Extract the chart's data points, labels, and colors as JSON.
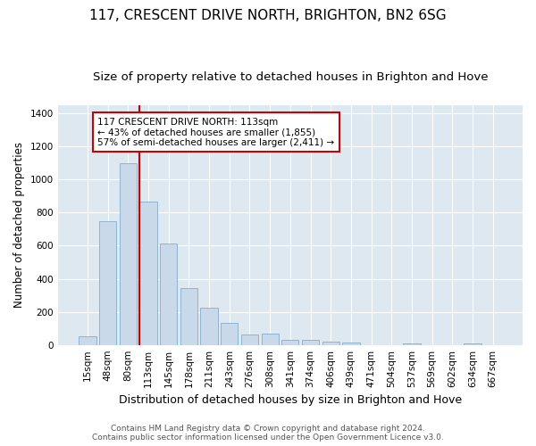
{
  "title": "117, CRESCENT DRIVE NORTH, BRIGHTON, BN2 6SG",
  "subtitle": "Size of property relative to detached houses in Brighton and Hove",
  "xlabel": "Distribution of detached houses by size in Brighton and Hove",
  "ylabel": "Number of detached properties",
  "footer_line1": "Contains HM Land Registry data © Crown copyright and database right 2024.",
  "footer_line2": "Contains public sector information licensed under the Open Government Licence v3.0.",
  "bar_labels": [
    "15sqm",
    "48sqm",
    "80sqm",
    "113sqm",
    "145sqm",
    "178sqm",
    "211sqm",
    "243sqm",
    "276sqm",
    "308sqm",
    "341sqm",
    "374sqm",
    "406sqm",
    "439sqm",
    "471sqm",
    "504sqm",
    "537sqm",
    "569sqm",
    "602sqm",
    "634sqm",
    "667sqm"
  ],
  "bar_values": [
    50,
    750,
    1100,
    865,
    615,
    345,
    225,
    135,
    65,
    70,
    30,
    30,
    20,
    15,
    0,
    0,
    10,
    0,
    0,
    10,
    0
  ],
  "bar_color": "#c9d9ea",
  "bar_edge_color": "#8db4d0",
  "vline_index": 3,
  "vline_color": "#cc0000",
  "annotation_text": "117 CRESCENT DRIVE NORTH: 113sqm\n← 43% of detached houses are smaller (1,855)\n57% of semi-detached houses are larger (2,411) →",
  "annotation_box_facecolor": "#ffffff",
  "annotation_box_edgecolor": "#cc0000",
  "ylim": [
    0,
    1450
  ],
  "yticks": [
    0,
    200,
    400,
    600,
    800,
    1000,
    1200,
    1400
  ],
  "plot_bg_color": "#dde8f0",
  "fig_bg_color": "#ffffff",
  "grid_color": "#ffffff",
  "title_fontsize": 11,
  "subtitle_fontsize": 9.5,
  "ylabel_fontsize": 8.5,
  "xlabel_fontsize": 9,
  "tick_fontsize": 7.5,
  "footer_fontsize": 6.5
}
